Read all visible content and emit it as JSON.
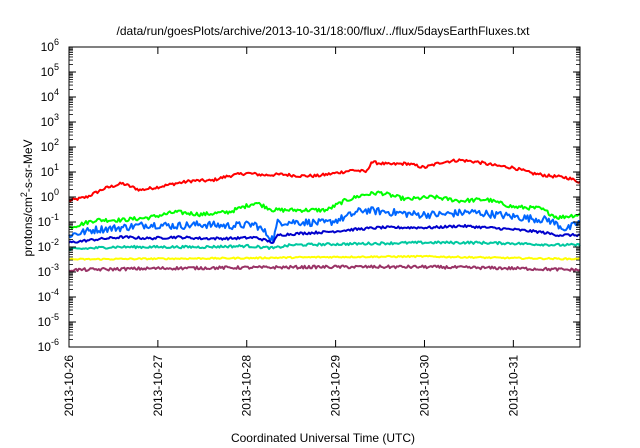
{
  "chart_data": {
    "type": "line",
    "title": "/data/run/goesPlots/archive/2013-10-31/18:00/flux/../flux/5daysEarthFluxes.txt",
    "xlabel": "Coordinated Universal Time (UTC)",
    "ylabel_parts": [
      "protons/cm",
      "2",
      "-s-sr-MeV"
    ],
    "y_scale": "log",
    "ylim_exp": [
      -6,
      6
    ],
    "y_ticks": [
      {
        "base": "10",
        "exp": "6"
      },
      {
        "base": "10",
        "exp": "5"
      },
      {
        "base": "10",
        "exp": "4"
      },
      {
        "base": "10",
        "exp": "3"
      },
      {
        "base": "10",
        "exp": "2"
      },
      {
        "base": "10",
        "exp": "1"
      },
      {
        "base": "10",
        "exp": "0"
      },
      {
        "base": "10",
        "exp": "-1"
      },
      {
        "base": "10",
        "exp": "-2"
      },
      {
        "base": "10",
        "exp": "-3"
      },
      {
        "base": "10",
        "exp": "-4"
      },
      {
        "base": "10",
        "exp": "-5"
      },
      {
        "base": "10",
        "exp": "-6"
      }
    ],
    "x_ticks": [
      "2013-10-26",
      "2013-10-27",
      "2013-10-28",
      "2013-10-29",
      "2013-10-30",
      "2013-10-31"
    ],
    "xlim_days": [
      0,
      5.75
    ],
    "grid": false,
    "legend": "none",
    "series": [
      {
        "color": "#ff0000",
        "noise": 0.06,
        "points": [
          [
            0,
            0.7
          ],
          [
            0.2,
            1.0
          ],
          [
            0.4,
            2.2
          ],
          [
            0.6,
            3.5
          ],
          [
            0.8,
            1.9
          ],
          [
            1.0,
            2.5
          ],
          [
            1.2,
            3.5
          ],
          [
            1.4,
            4.5
          ],
          [
            1.6,
            4.5
          ],
          [
            1.8,
            7.0
          ],
          [
            2.0,
            9.0
          ],
          [
            2.2,
            7.5
          ],
          [
            2.4,
            8.0
          ],
          [
            2.6,
            7.0
          ],
          [
            2.8,
            7.0
          ],
          [
            3.0,
            9.0
          ],
          [
            3.2,
            12.0
          ],
          [
            3.35,
            10.0
          ],
          [
            3.4,
            25.0
          ],
          [
            3.6,
            20.0
          ],
          [
            3.8,
            22.0
          ],
          [
            4.0,
            15.0
          ],
          [
            4.2,
            25.0
          ],
          [
            4.4,
            30.0
          ],
          [
            4.6,
            25.0
          ],
          [
            4.8,
            18.0
          ],
          [
            5.0,
            15.0
          ],
          [
            5.2,
            9.0
          ],
          [
            5.4,
            7.0
          ],
          [
            5.6,
            6.0
          ],
          [
            5.75,
            4.0
          ]
        ]
      },
      {
        "color": "#00ff00",
        "noise": 0.08,
        "points": [
          [
            0,
            0.06
          ],
          [
            0.3,
            0.12
          ],
          [
            0.6,
            0.12
          ],
          [
            0.9,
            0.15
          ],
          [
            1.2,
            0.25
          ],
          [
            1.5,
            0.2
          ],
          [
            1.8,
            0.25
          ],
          [
            2.1,
            0.6
          ],
          [
            2.3,
            0.3
          ],
          [
            2.6,
            0.3
          ],
          [
            2.9,
            0.3
          ],
          [
            3.1,
            0.7
          ],
          [
            3.3,
            1.2
          ],
          [
            3.5,
            1.5
          ],
          [
            3.8,
            0.8
          ],
          [
            4.1,
            1.0
          ],
          [
            4.4,
            0.7
          ],
          [
            4.7,
            0.8
          ],
          [
            5.0,
            0.4
          ],
          [
            5.3,
            0.35
          ],
          [
            5.5,
            0.15
          ],
          [
            5.75,
            0.2
          ]
        ]
      },
      {
        "color": "#0066ff",
        "noise": 0.15,
        "points": [
          [
            0,
            0.03
          ],
          [
            0.3,
            0.05
          ],
          [
            0.6,
            0.06
          ],
          [
            0.9,
            0.08
          ],
          [
            1.2,
            0.07
          ],
          [
            1.5,
            0.08
          ],
          [
            1.8,
            0.07
          ],
          [
            2.1,
            0.08
          ],
          [
            2.3,
            0.02
          ],
          [
            2.35,
            0.1
          ],
          [
            2.6,
            0.1
          ],
          [
            2.9,
            0.09
          ],
          [
            3.1,
            0.15
          ],
          [
            3.3,
            0.3
          ],
          [
            3.6,
            0.25
          ],
          [
            3.9,
            0.2
          ],
          [
            4.2,
            0.2
          ],
          [
            4.5,
            0.25
          ],
          [
            4.8,
            0.2
          ],
          [
            5.1,
            0.15
          ],
          [
            5.4,
            0.12
          ],
          [
            5.6,
            0.05
          ],
          [
            5.75,
            0.1
          ]
        ]
      },
      {
        "color": "#0000cc",
        "noise": 0.05,
        "points": [
          [
            0,
            0.015
          ],
          [
            0.3,
            0.02
          ],
          [
            0.6,
            0.025
          ],
          [
            0.9,
            0.022
          ],
          [
            1.2,
            0.025
          ],
          [
            1.5,
            0.022
          ],
          [
            1.8,
            0.022
          ],
          [
            2.1,
            0.024
          ],
          [
            2.3,
            0.015
          ],
          [
            2.35,
            0.03
          ],
          [
            2.6,
            0.035
          ],
          [
            2.9,
            0.04
          ],
          [
            3.2,
            0.05
          ],
          [
            3.5,
            0.06
          ],
          [
            3.8,
            0.06
          ],
          [
            4.1,
            0.06
          ],
          [
            4.4,
            0.07
          ],
          [
            4.7,
            0.06
          ],
          [
            5.0,
            0.05
          ],
          [
            5.3,
            0.04
          ],
          [
            5.5,
            0.03
          ],
          [
            5.75,
            0.03
          ]
        ]
      },
      {
        "color": "#00c8a0",
        "noise": 0.05,
        "points": [
          [
            0,
            0.008
          ],
          [
            0.5,
            0.01
          ],
          [
            1.0,
            0.01
          ],
          [
            1.5,
            0.01
          ],
          [
            2.0,
            0.011
          ],
          [
            2.3,
            0.009
          ],
          [
            2.5,
            0.012
          ],
          [
            3.0,
            0.013
          ],
          [
            3.5,
            0.014
          ],
          [
            4.0,
            0.015
          ],
          [
            4.5,
            0.015
          ],
          [
            5.0,
            0.014
          ],
          [
            5.5,
            0.012
          ],
          [
            5.75,
            0.012
          ]
        ]
      },
      {
        "color": "#ffff00",
        "noise": 0.03,
        "points": [
          [
            0,
            0.0032
          ],
          [
            1.0,
            0.0034
          ],
          [
            2.0,
            0.0036
          ],
          [
            3.0,
            0.004
          ],
          [
            4.0,
            0.0042
          ],
          [
            5.0,
            0.0036
          ],
          [
            5.75,
            0.0033
          ]
        ]
      },
      {
        "color": "#993366",
        "noise": 0.06,
        "points": [
          [
            0,
            0.0012
          ],
          [
            1.0,
            0.0014
          ],
          [
            2.0,
            0.0015
          ],
          [
            3.0,
            0.0016
          ],
          [
            4.0,
            0.0016
          ],
          [
            5.0,
            0.0014
          ],
          [
            5.75,
            0.0012
          ]
        ]
      }
    ]
  }
}
